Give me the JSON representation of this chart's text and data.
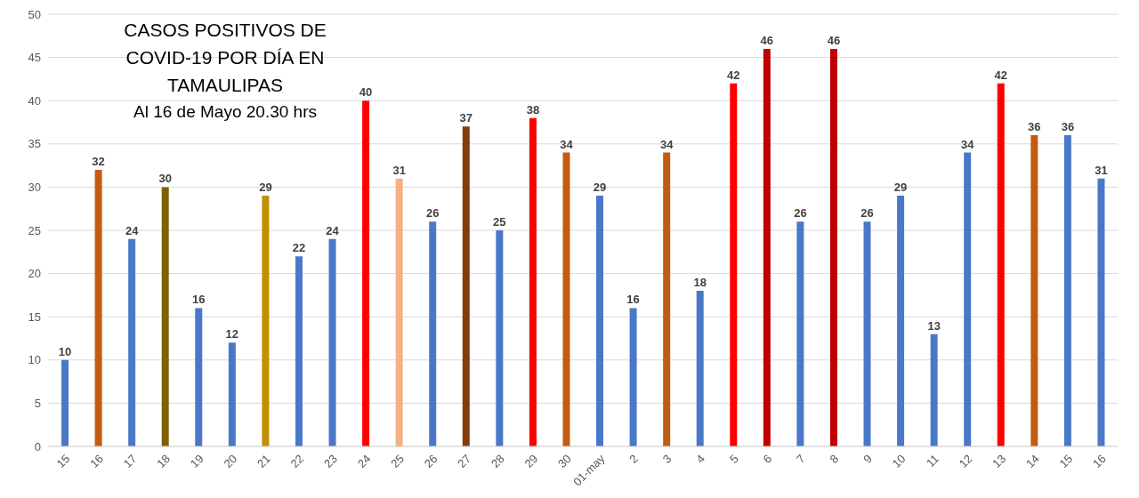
{
  "chart_data": {
    "type": "bar",
    "title": "CASOS POSITIVOS DE COVID-19 POR DÍA EN TAMAULIPAS",
    "subtitle": "Al 16 de Mayo 20.30 hrs",
    "categories": [
      "15",
      "16",
      "17",
      "18",
      "19",
      "20",
      "21",
      "22",
      "23",
      "24",
      "25",
      "26",
      "27",
      "28",
      "29",
      "30",
      "01-may",
      "2",
      "3",
      "4",
      "5",
      "6",
      "7",
      "8",
      "9",
      "10",
      "11",
      "12",
      "13",
      "14",
      "15",
      "16"
    ],
    "values": [
      10,
      32,
      24,
      30,
      16,
      12,
      29,
      22,
      24,
      40,
      31,
      26,
      37,
      25,
      38,
      34,
      29,
      16,
      34,
      18,
      42,
      46,
      26,
      46,
      26,
      29,
      13,
      34,
      42,
      36,
      36,
      31
    ],
    "colors": [
      "#4a78c9",
      "#c55a11",
      "#4a78c9",
      "#7f6000",
      "#4a78c9",
      "#4a78c9",
      "#bf9000",
      "#4a78c9",
      "#4a78c9",
      "#ff0000",
      "#f4b183",
      "#4a78c9",
      "#843c0c",
      "#4a78c9",
      "#ff0000",
      "#c55a11",
      "#4a78c9",
      "#4a78c9",
      "#c55a11",
      "#4a78c9",
      "#ff0000",
      "#c00000",
      "#4a78c9",
      "#c00000",
      "#4a78c9",
      "#4a78c9",
      "#4a78c9",
      "#4a78c9",
      "#ff0000",
      "#c55a11",
      "#4a78c9",
      "#4a78c9"
    ],
    "ylim": [
      0,
      50
    ],
    "yticks": [
      0,
      5,
      10,
      15,
      20,
      25,
      30,
      35,
      40,
      45,
      50
    ],
    "grid": "y",
    "data_labels": true
  }
}
